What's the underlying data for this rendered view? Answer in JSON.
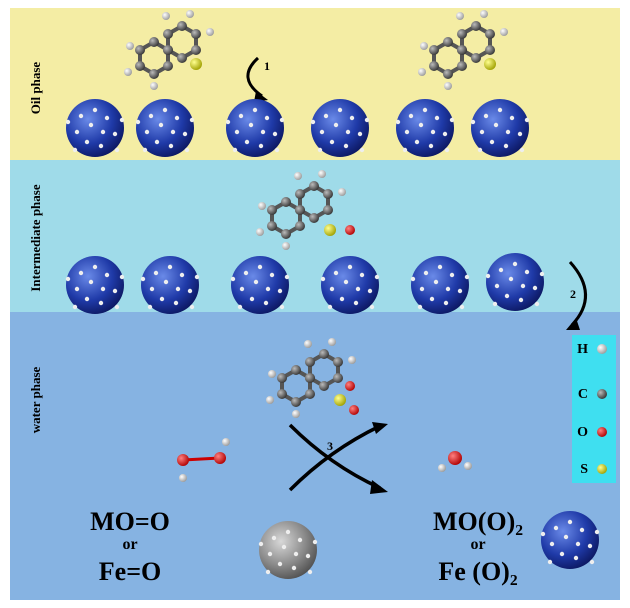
{
  "phases": [
    {
      "label": "Oil phase"
    },
    {
      "label": "Intermediate phase"
    },
    {
      "label": "water phase"
    }
  ],
  "steps": [
    "1",
    "2",
    "3"
  ],
  "legend": [
    "H",
    "C",
    "O",
    "S"
  ],
  "reactants": {
    "line1": "MO=O",
    "or": "or",
    "line2": "Fe=O"
  },
  "products": {
    "line1": "MO(O)₂",
    "or": "or",
    "line2": "Fe (O)₂"
  }
}
